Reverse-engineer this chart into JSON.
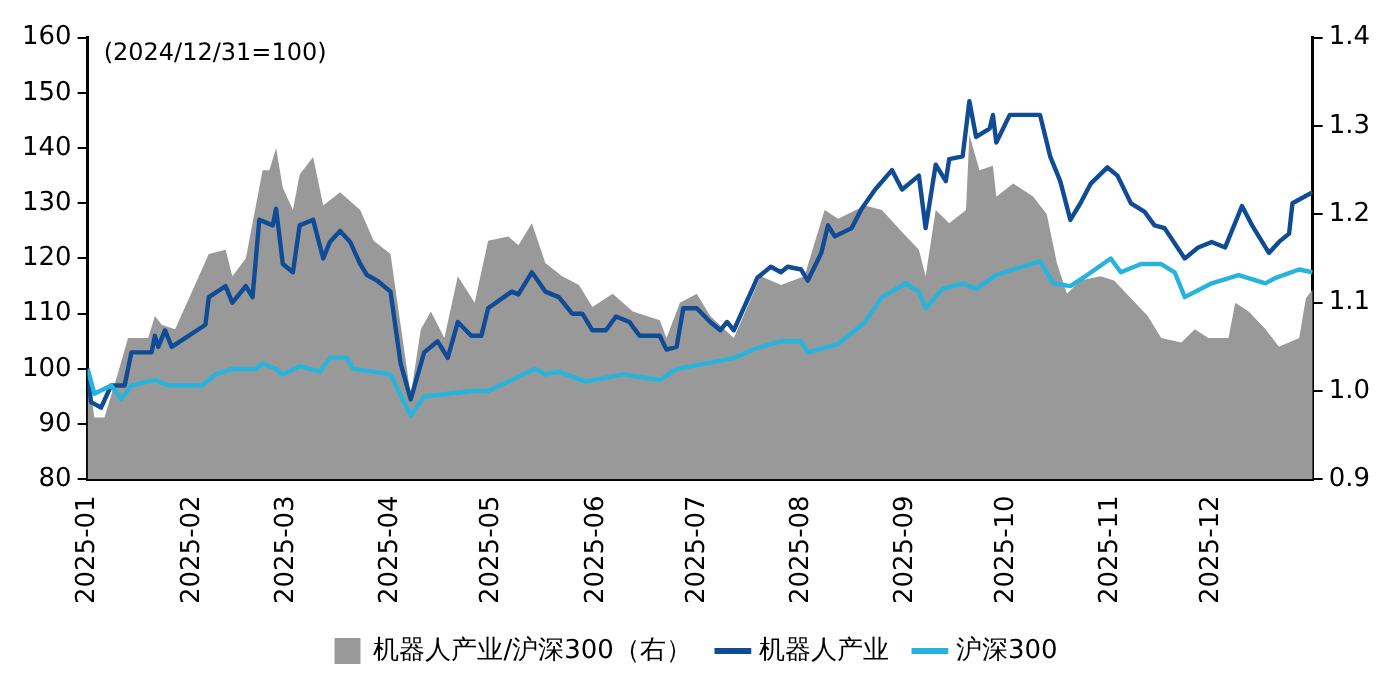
{
  "chart_data": {
    "type": "line",
    "annotations": [
      "(2024/12/31=100)"
    ],
    "xlim": [
      "2025-01-01",
      "2025-12-31"
    ],
    "xticks": [
      "2025-01",
      "2025-02",
      "2025-03",
      "2025-04",
      "2025-05",
      "2025-06",
      "2025-07",
      "2025-08",
      "2025-09",
      "2025-10",
      "2025-11",
      "2025-12"
    ],
    "ylim": [
      80,
      160
    ],
    "yticks": [
      80,
      90,
      100,
      110,
      120,
      130,
      140,
      150,
      160
    ],
    "y2lim": [
      0.9,
      1.4
    ],
    "y2ticks": [
      0.9,
      {
        "value": 1,
        "label": "1.0"
      },
      1.1,
      1.2,
      1.3,
      1.4
    ],
    "legend": "bottom",
    "grid": false,
    "series": [
      {
        "name": "机器人产业/沪深300（右）",
        "type": "area",
        "axis": "y2",
        "color": "#999999",
        "x": [
          "2025-01-01",
          "2025-01-03",
          "2025-01-06",
          "2025-01-10",
          "2025-01-13",
          "2025-01-19",
          "2025-01-21",
          "2025-01-23",
          "2025-01-27",
          "2025-02-06",
          "2025-02-11",
          "2025-02-13",
          "2025-02-17",
          "2025-02-22",
          "2025-02-24",
          "2025-02-26",
          "2025-02-28",
          "2025-03-03",
          "2025-03-05",
          "2025-03-09",
          "2025-03-12",
          "2025-03-17",
          "2025-03-23",
          "2025-03-27",
          "2025-04-01",
          "2025-04-07",
          "2025-04-10",
          "2025-04-13",
          "2025-04-17",
          "2025-04-21",
          "2025-04-26",
          "2025-04-30",
          "2025-05-06",
          "2025-05-09",
          "2025-05-13",
          "2025-05-17",
          "2025-05-22",
          "2025-05-27",
          "2025-05-31",
          "2025-06-06",
          "2025-06-12",
          "2025-06-20",
          "2025-06-22",
          "2025-06-26",
          "2025-07-01",
          "2025-07-05",
          "2025-07-12",
          "2025-07-20",
          "2025-07-26",
          "2025-08-02",
          "2025-08-08",
          "2025-08-12",
          "2025-08-20",
          "2025-08-25",
          "2025-08-31",
          "2025-09-05",
          "2025-09-07",
          "2025-09-10",
          "2025-09-14",
          "2025-09-19",
          "2025-09-20",
          "2025-09-23",
          "2025-09-27",
          "2025-09-28",
          "2025-10-03",
          "2025-10-09",
          "2025-10-13",
          "2025-10-16",
          "2025-10-19",
          "2025-10-23",
          "2025-10-29",
          "2025-11-02",
          "2025-11-07",
          "2025-11-12",
          "2025-11-16",
          "2025-11-22",
          "2025-11-26",
          "2025-11-30",
          "2025-12-06",
          "2025-12-08",
          "2025-12-12",
          "2025-12-17",
          "2025-12-21",
          "2025-12-27",
          "2025-12-29",
          "2025-12-31"
        ],
        "values": [
          1.025,
          0.97,
          0.97,
          1.02,
          1.06,
          1.06,
          1.085,
          1.075,
          1.07,
          1.155,
          1.16,
          1.13,
          1.15,
          1.25,
          1.25,
          1.275,
          1.23,
          1.205,
          1.245,
          1.265,
          1.21,
          1.225,
          1.205,
          1.17,
          1.155,
          0.995,
          1.07,
          1.09,
          1.06,
          1.13,
          1.1,
          1.17,
          1.175,
          1.165,
          1.19,
          1.145,
          1.13,
          1.12,
          1.095,
          1.11,
          1.09,
          1.08,
          1.06,
          1.1,
          1.11,
          1.085,
          1.06,
          1.13,
          1.12,
          1.13,
          1.205,
          1.195,
          1.21,
          1.205,
          1.18,
          1.16,
          1.13,
          1.205,
          1.19,
          1.205,
          1.29,
          1.25,
          1.255,
          1.22,
          1.235,
          1.22,
          1.2,
          1.145,
          1.11,
          1.125,
          1.13,
          1.125,
          1.105,
          1.085,
          1.06,
          1.055,
          1.07,
          1.06,
          1.06,
          1.1,
          1.09,
          1.07,
          1.05,
          1.06,
          1.105,
          1.115
        ]
      },
      {
        "name": "机器人产业",
        "type": "line",
        "color": "#0f4c95",
        "x": [
          "2025-01-01",
          "2025-01-02",
          "2025-01-05",
          "2025-01-08",
          "2025-01-12",
          "2025-01-14",
          "2025-01-20",
          "2025-01-21",
          "2025-01-22",
          "2025-01-24",
          "2025-01-26",
          "2025-02-05",
          "2025-02-06",
          "2025-02-11",
          "2025-02-13",
          "2025-02-17",
          "2025-02-19",
          "2025-02-21",
          "2025-02-25",
          "2025-02-26",
          "2025-02-28",
          "2025-03-03",
          "2025-03-05",
          "2025-03-09",
          "2025-03-12",
          "2025-03-14",
          "2025-03-17",
          "2025-03-20",
          "2025-03-23",
          "2025-03-25",
          "2025-03-28",
          "2025-04-01",
          "2025-04-04",
          "2025-04-07",
          "2025-04-11",
          "2025-04-15",
          "2025-04-18",
          "2025-04-21",
          "2025-04-25",
          "2025-04-28",
          "2025-04-30",
          "2025-05-07",
          "2025-05-09",
          "2025-05-13",
          "2025-05-17",
          "2025-05-21",
          "2025-05-25",
          "2025-05-28",
          "2025-05-31",
          "2025-06-04",
          "2025-06-07",
          "2025-06-11",
          "2025-06-14",
          "2025-06-20",
          "2025-06-22",
          "2025-06-25",
          "2025-06-27",
          "2025-07-01",
          "2025-07-05",
          "2025-07-08",
          "2025-07-10",
          "2025-07-12",
          "2025-07-19",
          "2025-07-23",
          "2025-07-26",
          "2025-07-28",
          "2025-08-01",
          "2025-08-03",
          "2025-08-07",
          "2025-08-09",
          "2025-08-11",
          "2025-08-16",
          "2025-08-19",
          "2025-08-23",
          "2025-08-28",
          "2025-08-31",
          "2025-09-05",
          "2025-09-07",
          "2025-09-10",
          "2025-09-13",
          "2025-09-14",
          "2025-09-18",
          "2025-09-20",
          "2025-09-22",
          "2025-09-26",
          "2025-09-27",
          "2025-09-28",
          "2025-10-02",
          "2025-10-11",
          "2025-10-14",
          "2025-10-17",
          "2025-10-20",
          "2025-10-23",
          "2025-10-26",
          "2025-10-31",
          "2025-11-03",
          "2025-11-07",
          "2025-11-11",
          "2025-11-14",
          "2025-11-17",
          "2025-11-23",
          "2025-11-27",
          "2025-12-01",
          "2025-12-05",
          "2025-12-10",
          "2025-12-13",
          "2025-12-18",
          "2025-12-21",
          "2025-12-24",
          "2025-12-25",
          "2025-12-31"
        ],
        "values": [
          100,
          94,
          93,
          97,
          97,
          103,
          103,
          106,
          104,
          107,
          104,
          108,
          113,
          115,
          112,
          115,
          113,
          127,
          126,
          129,
          119,
          117.5,
          126,
          127,
          120,
          123,
          125,
          123,
          119,
          117,
          116,
          114,
          101,
          94.5,
          103,
          105,
          102,
          108.5,
          106,
          106,
          111,
          114,
          113.5,
          117.5,
          114,
          113,
          110,
          110,
          107,
          107,
          109.5,
          108.5,
          106,
          106,
          103.5,
          104,
          111,
          111,
          108.5,
          107,
          108.5,
          107,
          116.5,
          118.5,
          117.5,
          118.5,
          118,
          116,
          121,
          126,
          124,
          125.5,
          129,
          132.5,
          136,
          132.5,
          135,
          125.5,
          137,
          134,
          138,
          138.5,
          148.5,
          142,
          143.5,
          146,
          141,
          146,
          146,
          138.5,
          134,
          127,
          130,
          133.5,
          136.5,
          135,
          130,
          128.5,
          126,
          125.5,
          120,
          122,
          123,
          122,
          129.5,
          126,
          121,
          123,
          124.5,
          130,
          132
        ]
      },
      {
        "name": "沪深300",
        "type": "line",
        "color": "#27b4dc",
        "x": [
          "2025-01-01",
          "2025-01-03",
          "2025-01-08",
          "2025-01-11",
          "2025-01-14",
          "2025-01-21",
          "2025-01-25",
          "2025-02-04",
          "2025-02-08",
          "2025-02-13",
          "2025-02-20",
          "2025-02-22",
          "2025-02-26",
          "2025-02-28",
          "2025-03-05",
          "2025-03-11",
          "2025-03-14",
          "2025-03-19",
          "2025-03-21",
          "2025-04-01",
          "2025-04-07",
          "2025-04-11",
          "2025-04-25",
          "2025-04-30",
          "2025-05-14",
          "2025-05-17",
          "2025-05-21",
          "2025-05-29",
          "2025-06-09",
          "2025-06-20",
          "2025-06-25",
          "2025-07-04",
          "2025-07-12",
          "2025-07-20",
          "2025-07-26",
          "2025-08-01",
          "2025-08-03",
          "2025-08-12",
          "2025-08-20",
          "2025-08-25",
          "2025-08-28",
          "2025-09-01",
          "2025-09-05",
          "2025-09-07",
          "2025-09-12",
          "2025-09-18",
          "2025-09-22",
          "2025-09-28",
          "2025-10-03",
          "2025-10-11",
          "2025-10-15",
          "2025-10-20",
          "2025-10-25",
          "2025-11-01",
          "2025-11-04",
          "2025-11-10",
          "2025-11-16",
          "2025-11-20",
          "2025-11-23",
          "2025-12-01",
          "2025-12-09",
          "2025-12-17",
          "2025-12-20",
          "2025-12-27",
          "2025-12-31"
        ],
        "values": [
          100,
          95.5,
          97,
          94.5,
          97,
          98,
          97,
          97,
          99,
          100,
          100,
          101,
          100,
          99,
          100.5,
          99.5,
          102,
          102,
          100,
          99,
          91.5,
          95,
          96,
          96,
          100,
          99,
          99.5,
          97.7,
          99,
          98,
          100,
          101,
          102,
          104,
          105,
          105,
          103,
          104.5,
          108.5,
          113,
          114,
          115.5,
          114,
          111,
          114.5,
          115.5,
          114.5,
          117,
          118,
          119.5,
          115.5,
          115,
          117,
          120,
          117.5,
          119,
          119,
          117.5,
          113,
          115.5,
          117,
          115.5,
          116.5,
          118,
          117.5
        ]
      }
    ]
  }
}
